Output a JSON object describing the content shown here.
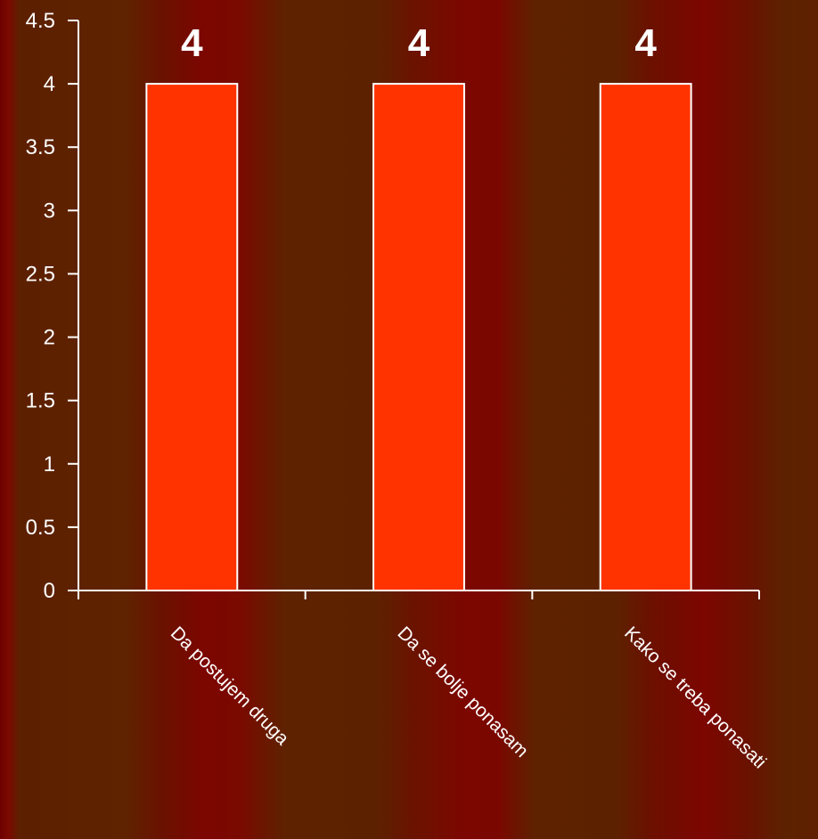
{
  "chart_data": {
    "type": "bar",
    "categories": [
      "Da postujem druga",
      "Da se bolje ponasam",
      "Kako se treba ponasati"
    ],
    "values": [
      4,
      4,
      4
    ],
    "data_labels": [
      "4",
      "4",
      "4"
    ],
    "ylim": [
      0,
      4.5
    ],
    "yticks": [
      "0",
      "0.5",
      "1",
      "1.5",
      "2",
      "2.5",
      "3",
      "3.5",
      "4",
      "4.5"
    ],
    "title": "",
    "xlabel": "",
    "ylabel": "",
    "grid": false,
    "legend": "none",
    "colors": {
      "bar_fill": "#ff3300",
      "bar_stroke": "#ffffff",
      "axis": "#ffffff",
      "text": "#ffffff"
    }
  }
}
